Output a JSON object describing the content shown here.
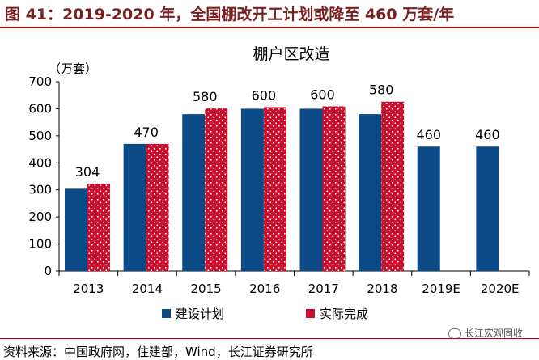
{
  "figure": {
    "title": "图 41：2019-2020 年，全国棚改开工计划或降至 460 万套/年",
    "source": "资料来源：中国政府网，住建部，Wind，长江证券研究所",
    "watermark": "长江宏观固收"
  },
  "colors": {
    "title": "#7a1f1f",
    "rule": "#c00000",
    "planned": "#0b4a86",
    "actual": "#c8102e"
  },
  "chart_data": {
    "type": "bar",
    "title": "棚户区改造",
    "ylabel": "（万套）",
    "ylim": [
      0,
      700
    ],
    "yticks": [
      0,
      100,
      200,
      300,
      400,
      500,
      600,
      700
    ],
    "categories": [
      "2013",
      "2014",
      "2015",
      "2016",
      "2017",
      "2018",
      "2019E",
      "2020E"
    ],
    "series": [
      {
        "name": "建设计划",
        "values": [
          304,
          470,
          580,
          600,
          600,
          580,
          460,
          460
        ]
      },
      {
        "name": "实际完成",
        "values": [
          323,
          470,
          601,
          606,
          609,
          626,
          null,
          null
        ]
      }
    ],
    "data_labels": [
      "304",
      "470",
      "580",
      "600",
      "600",
      "580",
      "460",
      "460"
    ],
    "legend_position": "bottom",
    "grid": false
  }
}
